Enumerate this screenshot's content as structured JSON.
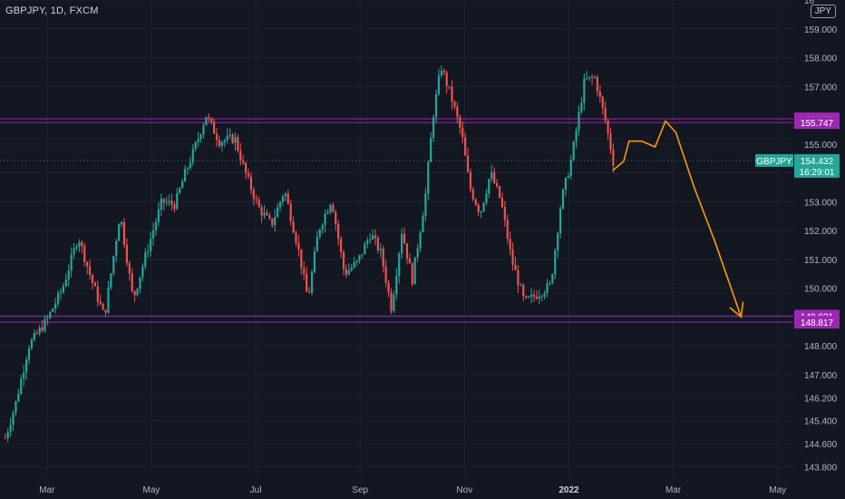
{
  "header": {
    "title": "GBPJPY, 1D, FXCM",
    "currency": "JPY"
  },
  "colors": {
    "bg": "#131722",
    "up": "#26a69a",
    "down": "#ef5350",
    "level": "#9c27b0",
    "arrow": "#ff9800",
    "price": "#26a69a",
    "grid": "#1e222d"
  },
  "chart_data": {
    "type": "candlestick",
    "symbol": "GBPJPY",
    "timeframe": "1D",
    "source": "FXCM",
    "ylim": [
      143.5,
      160.0
    ],
    "y_ticks": [
      "143.800",
      "144.600",
      "145.400",
      "146.200",
      "147.000",
      "148.000",
      "149.000",
      "150.000",
      "151.000",
      "152.000",
      "153.000",
      "154.000",
      "155.000",
      "157.000",
      "158.000",
      "159.000",
      "16"
    ],
    "x_ticks": [
      {
        "label": "Mar",
        "x": 0.2
      },
      {
        "label": "May",
        "x": 2.2
      },
      {
        "label": "Jul",
        "x": 4.2
      },
      {
        "label": "Sep",
        "x": 6.2
      },
      {
        "label": "Nov",
        "x": 8.2
      },
      {
        "label": "2022",
        "x": 10.2,
        "bold": true
      },
      {
        "label": "Mar",
        "x": 12.2
      },
      {
        "label": "May",
        "x": 14.2
      }
    ],
    "x_domain": [
      -0.7,
      14.5
    ],
    "levels": [
      {
        "label": "155.875",
        "value": 155.875
      },
      {
        "label": "155.747",
        "value": 155.747
      },
      {
        "label": "149.031",
        "value": 149.031
      },
      {
        "label": "148.817",
        "value": 148.817
      }
    ],
    "last_price": {
      "symbol": "GBPJPY",
      "value": 154.432,
      "label": "154.432",
      "countdown": "16:29:01"
    },
    "path_points": [
      [
        -0.6,
        144.8
      ],
      [
        -0.4,
        146.0
      ],
      [
        -0.15,
        148.0
      ],
      [
        0.2,
        148.9
      ],
      [
        0.5,
        150.0
      ],
      [
        0.8,
        151.8
      ],
      [
        1.05,
        150.3
      ],
      [
        1.3,
        149.0
      ],
      [
        1.6,
        152.6
      ],
      [
        1.85,
        149.6
      ],
      [
        2.1,
        151.2
      ],
      [
        2.4,
        153.0
      ],
      [
        2.65,
        152.9
      ],
      [
        2.85,
        154.0
      ],
      [
        3.0,
        154.7
      ],
      [
        3.25,
        156.0
      ],
      [
        3.5,
        155.1
      ],
      [
        3.8,
        155.2
      ],
      [
        4.0,
        154.0
      ],
      [
        4.25,
        152.8
      ],
      [
        4.5,
        152.2
      ],
      [
        4.75,
        153.4
      ],
      [
        5.0,
        151.5
      ],
      [
        5.2,
        149.6
      ],
      [
        5.4,
        152.0
      ],
      [
        5.65,
        153.1
      ],
      [
        5.9,
        150.5
      ],
      [
        6.15,
        150.9
      ],
      [
        6.4,
        151.9
      ],
      [
        6.6,
        151.2
      ],
      [
        6.8,
        149.3
      ],
      [
        7.0,
        152.0
      ],
      [
        7.2,
        150.3
      ],
      [
        7.45,
        153.2
      ],
      [
        7.6,
        156.0
      ],
      [
        7.75,
        157.7
      ],
      [
        7.95,
        156.6
      ],
      [
        8.15,
        155.3
      ],
      [
        8.3,
        153.5
      ],
      [
        8.5,
        152.6
      ],
      [
        8.7,
        154.0
      ],
      [
        8.9,
        153.0
      ],
      [
        9.1,
        151.0
      ],
      [
        9.35,
        149.5
      ],
      [
        9.6,
        149.8
      ],
      [
        9.85,
        150.1
      ],
      [
        10.05,
        153.0
      ],
      [
        10.25,
        154.5
      ],
      [
        10.5,
        157.2
      ],
      [
        10.7,
        157.3
      ],
      [
        10.9,
        155.8
      ],
      [
        11.05,
        154.4
      ]
    ],
    "annotation_arrow": [
      [
        11.05,
        154.1
      ],
      [
        11.25,
        154.4
      ],
      [
        11.35,
        155.1
      ],
      [
        11.6,
        155.1
      ],
      [
        11.85,
        154.9
      ],
      [
        12.05,
        155.8
      ],
      [
        12.25,
        155.4
      ],
      [
        12.6,
        153.5
      ],
      [
        13.0,
        151.6
      ],
      [
        13.5,
        149.0
      ]
    ]
  }
}
